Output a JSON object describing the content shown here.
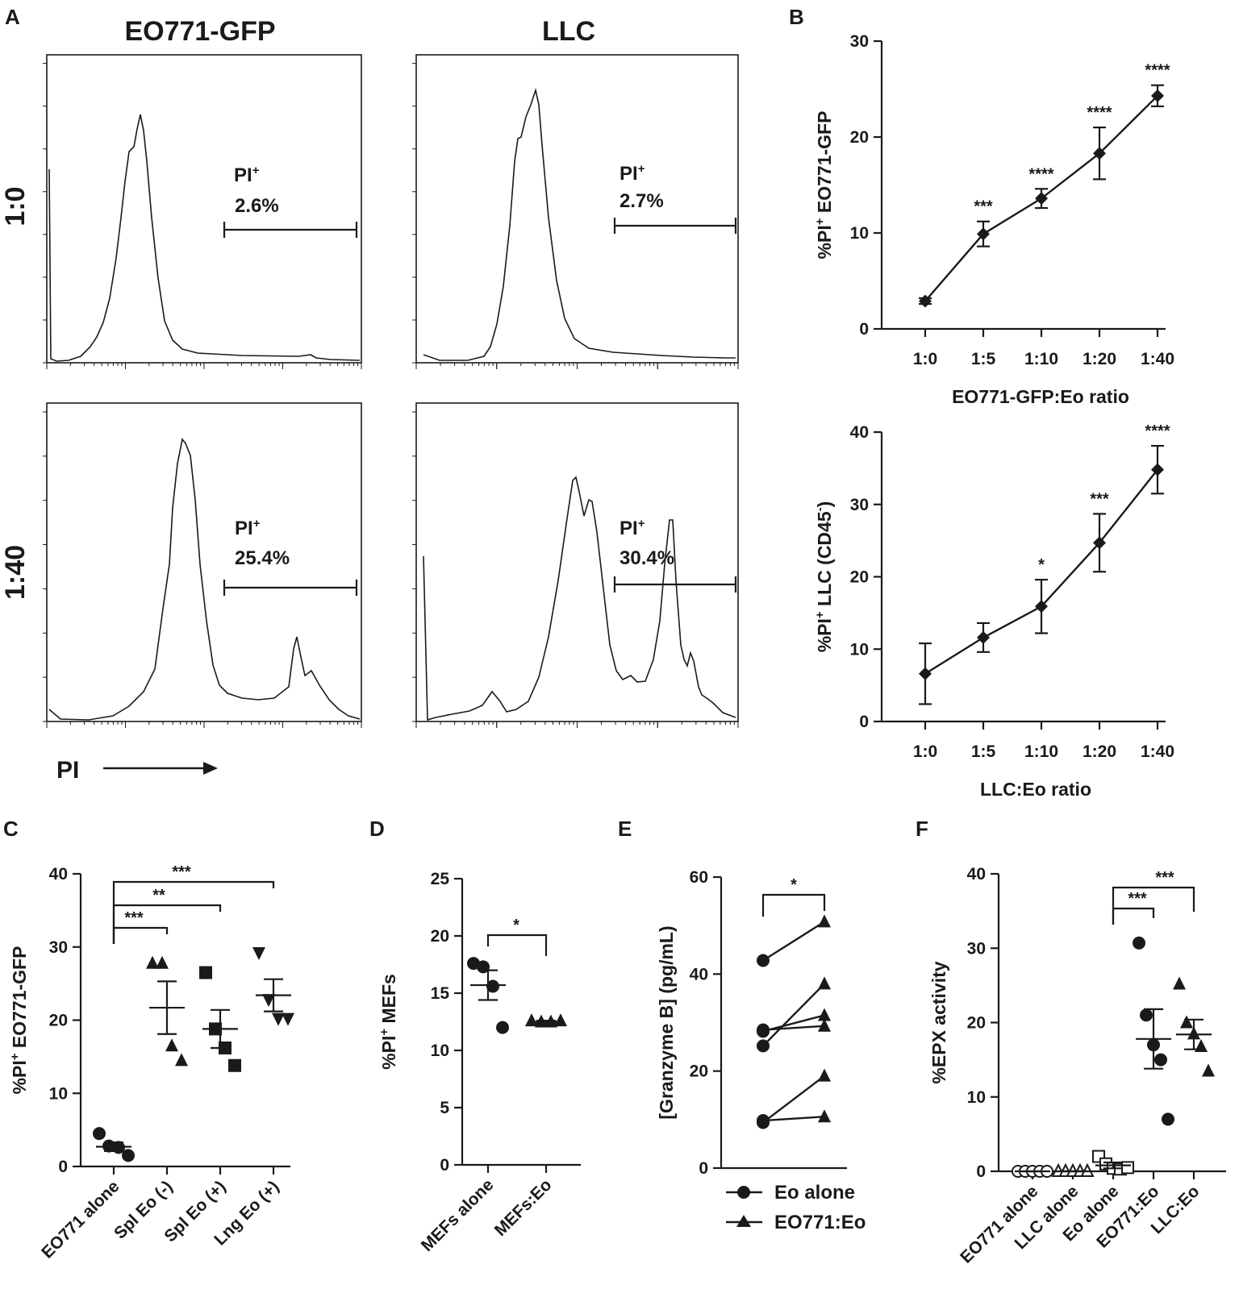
{
  "panel_labels": {
    "A": "A",
    "B": "B",
    "C": "C",
    "D": "D",
    "E": "E",
    "F": "F"
  },
  "panel_a": {
    "col_titles": [
      "EO771-GFP",
      "LLC"
    ],
    "row_titles": [
      "1:0",
      "1:40"
    ],
    "x_label": "PI",
    "gate_label": "PI",
    "gate_sup": "+",
    "gates": [
      {
        "name": "eo-1-0",
        "pct": "2.6%"
      },
      {
        "name": "llc-1-0",
        "pct": "2.7%"
      },
      {
        "name": "eo-1-40",
        "pct": "25.4%"
      },
      {
        "name": "llc-1-40",
        "pct": "30.4%"
      }
    ]
  },
  "chart_data": [
    {
      "id": "B1",
      "type": "line",
      "categories": [
        "1:0",
        "1:5",
        "1:10",
        "1:20",
        "1:40"
      ],
      "values": [
        2.9,
        9.9,
        13.6,
        18.3,
        24.3
      ],
      "errors": [
        0.3,
        1.3,
        1.0,
        2.7,
        1.1
      ],
      "significance": [
        "",
        "***",
        "****",
        "****",
        "****"
      ],
      "ylim": [
        0,
        30
      ],
      "yticks": [
        0,
        10,
        20,
        30
      ],
      "xlabel": "EO771-GFP:Eo ratio",
      "ylabel": "%PI+ EO771-GFP",
      "ylabel_parts": {
        "pre": "%PI",
        "sup": "+",
        "post": " EO771-GFP"
      }
    },
    {
      "id": "B2",
      "type": "line",
      "categories": [
        "1:0",
        "1:5",
        "1:10",
        "1:20",
        "1:40"
      ],
      "values": [
        6.6,
        11.6,
        15.9,
        24.7,
        34.8
      ],
      "errors": [
        4.2,
        2.0,
        3.7,
        4.0,
        3.3
      ],
      "significance": [
        "",
        "",
        "*",
        "***",
        "****"
      ],
      "ylim": [
        0,
        40
      ],
      "yticks": [
        0,
        10,
        20,
        30,
        40
      ],
      "xlabel": "LLC:Eo ratio",
      "ylabel": "%PI+ LLC (CD45-)",
      "ylabel_parts": {
        "pre": "%PI",
        "sup": "+",
        "mid": " LLC (CD45",
        "sup2": "-",
        "post": ")"
      }
    },
    {
      "id": "C",
      "type": "scatter",
      "categories": [
        "EO771 alone",
        "Spl Eo (-)",
        "Spl Eo (+)",
        "Lng Eo (+)"
      ],
      "markers": [
        "circle",
        "triangle-up",
        "square",
        "triangle-down"
      ],
      "points": [
        [
          4.5,
          2.8,
          2.6,
          1.5
        ],
        [
          27.8,
          27.8,
          16.5,
          14.5
        ],
        [
          26.5,
          18.8,
          16.2,
          13.8
        ],
        [
          29.2,
          22.8,
          20.2,
          20.2
        ]
      ],
      "means": [
        2.7,
        21.7,
        18.8,
        23.4
      ],
      "sem": [
        0.6,
        3.6,
        2.6,
        2.2
      ],
      "brackets": [
        {
          "from": 0,
          "to": 1,
          "label": "***"
        },
        {
          "from": 0,
          "to": 2,
          "label": "**"
        },
        {
          "from": 0,
          "to": 3,
          "label": "***"
        }
      ],
      "ylim": [
        0,
        40
      ],
      "yticks": [
        0,
        10,
        20,
        30,
        40
      ],
      "ylabel": "%PI+ EO771-GFP",
      "ylabel_parts": {
        "pre": "%PI",
        "sup": "+",
        "post": " EO771-GFP"
      }
    },
    {
      "id": "D",
      "type": "scatter",
      "categories": [
        "MEFs alone",
        "MEFs:Eo"
      ],
      "markers": [
        "circle",
        "triangle-up"
      ],
      "points": [
        [
          17.6,
          17.3,
          15.6,
          12.0
        ],
        [
          12.6,
          12.5,
          12.5,
          12.6
        ]
      ],
      "means": [
        15.7,
        12.5
      ],
      "sem": [
        1.3,
        0.1
      ],
      "brackets": [
        {
          "from": 0,
          "to": 1,
          "label": "*"
        }
      ],
      "ylim": [
        0,
        25
      ],
      "yticks": [
        0,
        5,
        10,
        15,
        20,
        25
      ],
      "ylabel": "%PI+ MEFs",
      "ylabel_parts": {
        "pre": "%PI",
        "sup": "+",
        "post": " MEFs"
      }
    },
    {
      "id": "E",
      "type": "paired",
      "pairs": [
        [
          42.8,
          50.8
        ],
        [
          28.2,
          31.5
        ],
        [
          25.2,
          38.0
        ],
        [
          28.5,
          29.3
        ],
        [
          9.4,
          19.0
        ],
        [
          9.8,
          10.6
        ]
      ],
      "brackets": [
        {
          "from": 0,
          "to": 1,
          "label": "*"
        }
      ],
      "legend": [
        "Eo alone",
        "EO771:Eo"
      ],
      "ylim": [
        0,
        60
      ],
      "yticks": [
        0,
        20,
        40,
        60
      ],
      "ylabel": "[Granzyme B] (pg/mL)"
    },
    {
      "id": "F",
      "type": "scatter",
      "categories": [
        "EO771 alone",
        "LLC alone",
        "Eo alone",
        "EO771:Eo",
        "LLC:Eo"
      ],
      "markers": [
        "circle-open",
        "triangle-open",
        "square-open",
        "circle",
        "triangle-up"
      ],
      "points": [
        [
          0,
          0,
          0,
          0,
          0
        ],
        [
          0,
          0,
          0,
          0,
          0
        ],
        [
          2.0,
          1.0,
          0.4,
          0.3,
          0.5
        ],
        [
          30.7,
          21.0,
          17.0,
          15.0,
          7.0
        ],
        [
          25.2,
          20.0,
          18.5,
          16.8,
          13.5
        ]
      ],
      "means": [
        0.0,
        0.0,
        0.8,
        17.8,
        18.4
      ],
      "sem": [
        0.0,
        0.0,
        0.4,
        4.0,
        2.0
      ],
      "brackets": [
        {
          "from": 2,
          "to": 3,
          "label": "***"
        },
        {
          "from": 2,
          "to": 4,
          "label": "***"
        }
      ],
      "ylim": [
        0,
        40
      ],
      "yticks": [
        0,
        10,
        20,
        30,
        40
      ],
      "ylabel": "%EPX activity"
    }
  ]
}
